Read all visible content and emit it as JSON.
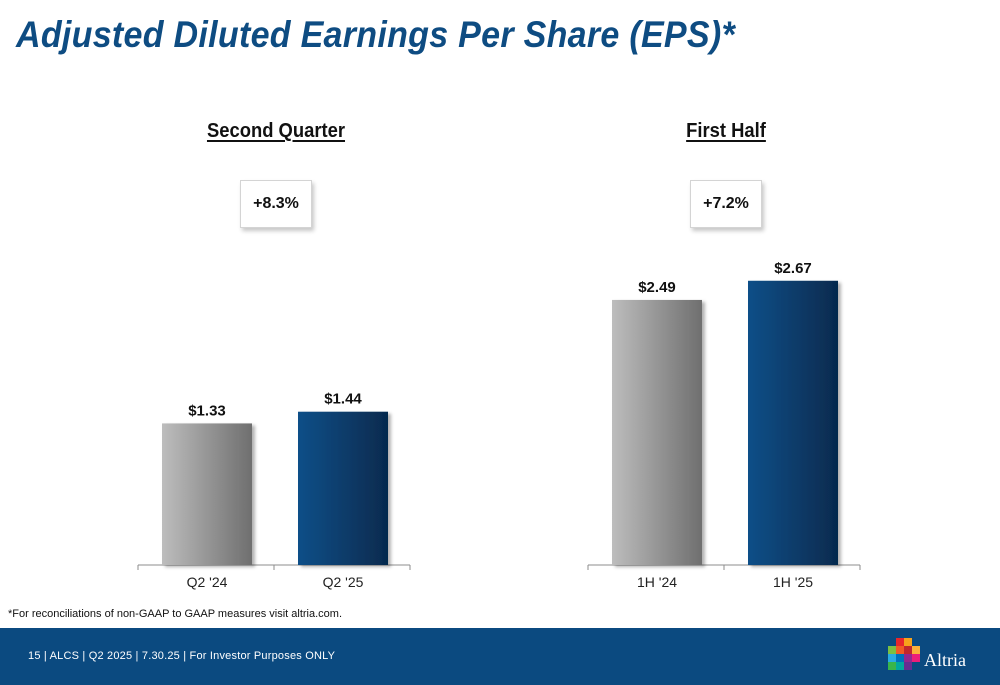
{
  "title": "Adjusted Diluted Earnings Per Share (EPS)*",
  "footnote": "*For reconciliations of non-GAAP to GAAP measures visit altria.com.",
  "footer": {
    "text": "15 | ALCS | Q2 2025 | 7.30.25 | For Investor Purposes ONLY",
    "logo_text": "Altria",
    "background_color": "#0b4a80"
  },
  "colors": {
    "title": "#0e4c82",
    "prior_bar": "#9c9c9c",
    "current_bar": "#0e4c82"
  },
  "chart_data": [
    {
      "type": "bar",
      "title": "Second Quarter",
      "growth_label": "+8.3%",
      "categories": [
        "Q2 '24",
        "Q2 '25"
      ],
      "values": [
        1.33,
        1.44
      ],
      "data_labels": [
        "$1.33",
        "$1.44"
      ],
      "ylim": [
        0,
        3.1
      ],
      "grid": false,
      "legend": "none"
    },
    {
      "type": "bar",
      "title": "First Half",
      "growth_label": "+7.2%",
      "categories": [
        "1H '24",
        "1H '25"
      ],
      "values": [
        2.49,
        2.67
      ],
      "data_labels": [
        "$2.49",
        "$2.67"
      ],
      "ylim": [
        0,
        3.1
      ],
      "grid": false,
      "legend": "none"
    }
  ]
}
